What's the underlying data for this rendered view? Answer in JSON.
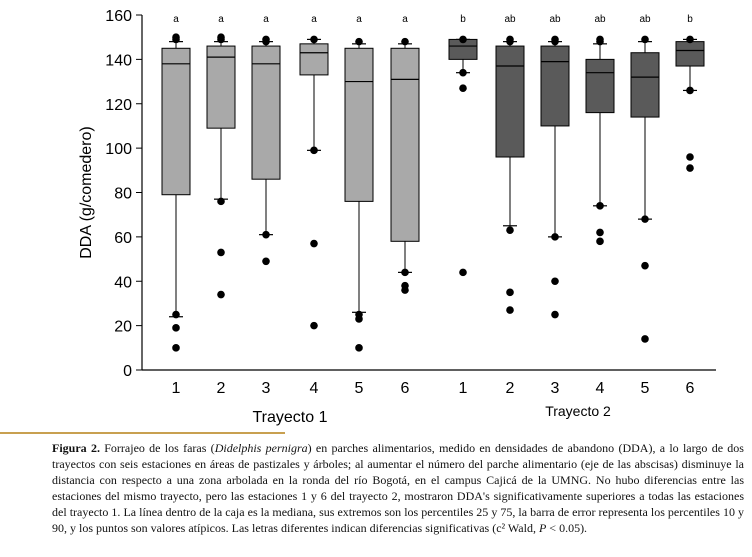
{
  "chart_data": {
    "type": "boxplot",
    "ylabel": "DDA (g/comedero)",
    "ylim": [
      0,
      160
    ],
    "yticks": [
      0,
      20,
      40,
      60,
      80,
      100,
      120,
      140,
      160
    ],
    "groups": [
      {
        "name": "Trayecto 1",
        "color": "#a9a9a9",
        "boxes": [
          {
            "station": "1",
            "letter": "a",
            "p10": 24,
            "q1": 79,
            "median": 138,
            "q3": 145,
            "p90": 148,
            "outliers": [
              150,
              149,
              25,
              19,
              10
            ]
          },
          {
            "station": "2",
            "letter": "a",
            "p10": 77,
            "q1": 109,
            "median": 141,
            "q3": 146,
            "p90": 148,
            "outliers": [
              150,
              149,
              76,
              53,
              34
            ]
          },
          {
            "station": "3",
            "letter": "a",
            "p10": 61,
            "q1": 86,
            "median": 138,
            "q3": 146,
            "p90": 148,
            "outliers": [
              149,
              148,
              61,
              49
            ]
          },
          {
            "station": "4",
            "letter": "a",
            "p10": 99,
            "q1": 133,
            "median": 143,
            "q3": 147,
            "p90": 149,
            "outliers": [
              149,
              99,
              57,
              20
            ]
          },
          {
            "station": "5",
            "letter": "a",
            "p10": 26,
            "q1": 76,
            "median": 130,
            "q3": 145,
            "p90": 147,
            "outliers": [
              148,
              25,
              23,
              10
            ]
          },
          {
            "station": "6",
            "letter": "a",
            "p10": 44,
            "q1": 58,
            "median": 131,
            "q3": 145,
            "p90": 147,
            "outliers": [
              148,
              44,
              38,
              36
            ]
          }
        ]
      },
      {
        "name": "Trayecto 2",
        "color": "#5a5a5a",
        "boxes": [
          {
            "station": "1",
            "letter": "b",
            "p10": 134,
            "q1": 140,
            "median": 146,
            "q3": 149,
            "p90": 149,
            "outliers": [
              149,
              134,
              127,
              44
            ]
          },
          {
            "station": "2",
            "letter": "ab",
            "p10": 65,
            "q1": 96,
            "median": 137,
            "q3": 146,
            "p90": 148,
            "outliers": [
              149,
              148,
              63,
              35,
              27
            ]
          },
          {
            "station": "3",
            "letter": "ab",
            "p10": 60,
            "q1": 110,
            "median": 139,
            "q3": 146,
            "p90": 148,
            "outliers": [
              149,
              148,
              60,
              40,
              25
            ]
          },
          {
            "station": "4",
            "letter": "ab",
            "p10": 74,
            "q1": 116,
            "median": 134,
            "q3": 140,
            "p90": 147,
            "outliers": [
              149,
              148,
              74,
              62,
              58
            ]
          },
          {
            "station": "5",
            "letter": "ab",
            "p10": 68,
            "q1": 114,
            "median": 132,
            "q3": 143,
            "p90": 148,
            "outliers": [
              149,
              68,
              47,
              14
            ]
          },
          {
            "station": "6",
            "letter": "b",
            "p10": 126,
            "q1": 137,
            "median": 144,
            "q3": 148,
            "p90": 149,
            "outliers": [
              149,
              126,
              96,
              91
            ]
          }
        ]
      }
    ]
  },
  "caption": {
    "label": "Figura 2.",
    "text_1": " Forrajeo de los faras (",
    "species": "Didelphis pernigra",
    "text_2": ") en parches alimentarios, medido en densidades de abandono (DDA), a lo largo de dos trayectos con seis estaciones en áreas de pastizales y árboles; al aumentar el número del parche alimentario (eje de las abscisas) disminuye la distancia con respecto a una zona arbolada en la ronda del río Bogotá, en el campus Cajicá de la UMNG.  No hubo diferencias entre las estaciones del mismo trayecto, pero las estaciones 1 y 6 del trayecto 2, mostraron DDA's significativamente superiores a todas las estaciones del trayecto 1.  La línea dentro de la caja es la mediana, sus extremos son los percentiles 25 y 75, la barra de error representa los percentiles 10 y 90, y los puntos son valores atípicos. Las letras diferentes indican diferencias significativas (c² Wald, ",
    "p_symbol": "P",
    "text_3": " < 0.05)."
  }
}
